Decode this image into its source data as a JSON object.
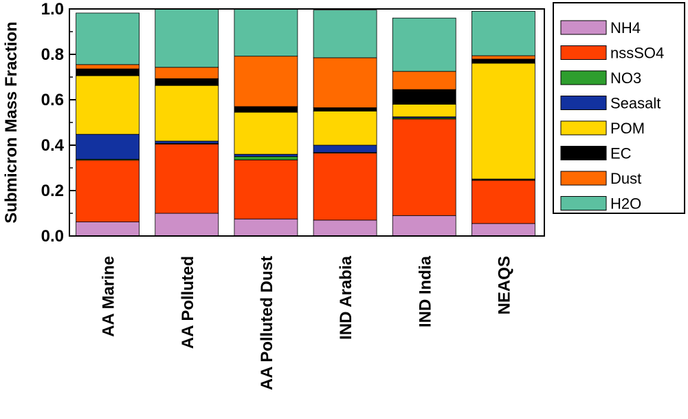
{
  "chart_data": {
    "type": "bar",
    "stacked": true,
    "ylabel": "Submicron Mass Fraction",
    "xlabel": "",
    "ylim": [
      0,
      1.0
    ],
    "yticks": [
      "0.0",
      "0.2",
      "0.4",
      "0.6",
      "0.8",
      "1.0"
    ],
    "grid": false,
    "legend_position": "right",
    "categories": [
      "AA Marine",
      "AA Polluted",
      "AA Polluted Dust",
      "IND Arabia",
      "IND India",
      "NEAQS"
    ],
    "series": [
      {
        "name": "NH4",
        "color": "#cc8fc8",
        "values": [
          0.062,
          0.1,
          0.075,
          0.07,
          0.09,
          0.055
        ]
      },
      {
        "name": "nssSO4",
        "color": "#ff4000",
        "values": [
          0.272,
          0.305,
          0.26,
          0.295,
          0.425,
          0.19
        ]
      },
      {
        "name": "NO3",
        "color": "#2e9e2e",
        "values": [
          0.004,
          0.003,
          0.015,
          0.003,
          0.005,
          0.003
        ]
      },
      {
        "name": "Seasalt",
        "color": "#1232a0",
        "values": [
          0.11,
          0.01,
          0.01,
          0.032,
          0.005,
          0.003
        ]
      },
      {
        "name": "POM",
        "color": "#ffd600",
        "values": [
          0.258,
          0.245,
          0.185,
          0.15,
          0.055,
          0.51
        ]
      },
      {
        "name": "EC",
        "color": "#000000",
        "values": [
          0.03,
          0.03,
          0.025,
          0.015,
          0.065,
          0.018
        ]
      },
      {
        "name": "Dust",
        "color": "#ff6a00",
        "values": [
          0.019,
          0.05,
          0.222,
          0.22,
          0.08,
          0.015
        ]
      },
      {
        "name": "H2O",
        "color": "#5cc0a0",
        "values": [
          0.227,
          0.257,
          0.208,
          0.21,
          0.235,
          0.196
        ]
      }
    ]
  }
}
